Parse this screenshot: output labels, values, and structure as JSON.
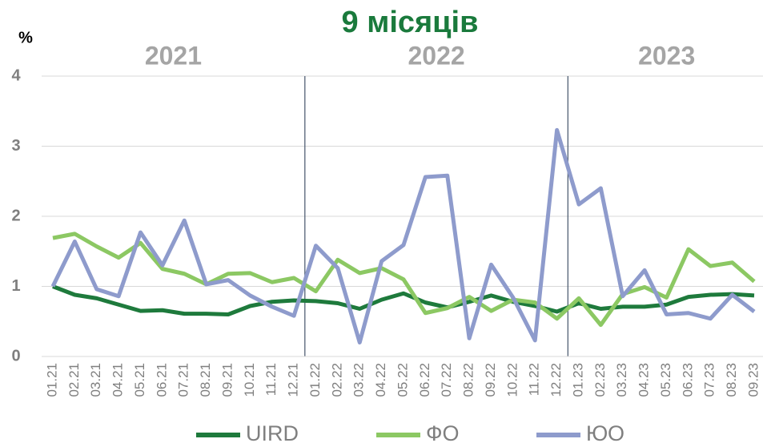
{
  "chart_data": {
    "type": "line",
    "title": "9 місяців",
    "y_label": "%",
    "periods": [
      "2021",
      "2022",
      "2023"
    ],
    "categories": [
      "01.21",
      "02.21",
      "03.21",
      "04.21",
      "05.21",
      "06.21",
      "07.21",
      "08.21",
      "09.21",
      "10.21",
      "11.21",
      "12.21",
      "01.22",
      "02.22",
      "03.22",
      "04.22",
      "05.22",
      "06.22",
      "07.22",
      "08.22",
      "09.22",
      "10.22",
      "11.22",
      "12.22",
      "01.23",
      "02.23",
      "03.23",
      "04.23",
      "05.23",
      "06.23",
      "07.23",
      "08.23",
      "09.23"
    ],
    "series": [
      {
        "name": "UIRD",
        "color": "#1e7a3c",
        "values": [
          1.0,
          0.88,
          0.83,
          0.74,
          0.65,
          0.66,
          0.61,
          0.61,
          0.6,
          0.72,
          0.78,
          0.8,
          0.79,
          0.76,
          0.68,
          0.81,
          0.9,
          0.77,
          0.7,
          0.78,
          0.87,
          0.78,
          0.72,
          0.64,
          0.76,
          0.68,
          0.71,
          0.71,
          0.74,
          0.85,
          0.88,
          0.89,
          0.87
        ]
      },
      {
        "name": "ФО",
        "color": "#8cc863",
        "values": [
          1.69,
          1.75,
          1.57,
          1.41,
          1.62,
          1.25,
          1.18,
          1.03,
          1.18,
          1.19,
          1.06,
          1.12,
          0.93,
          1.38,
          1.19,
          1.26,
          1.1,
          0.62,
          0.69,
          0.85,
          0.65,
          0.81,
          0.77,
          0.54,
          0.83,
          0.45,
          0.89,
          0.99,
          0.84,
          1.53,
          1.29,
          1.34,
          1.07
        ]
      },
      {
        "name": "ЮО",
        "color": "#8e9bcc",
        "values": [
          1.0,
          1.64,
          0.96,
          0.86,
          1.77,
          1.3,
          1.94,
          1.03,
          1.09,
          0.87,
          0.71,
          0.58,
          1.58,
          1.26,
          0.2,
          1.36,
          1.59,
          2.56,
          2.58,
          0.26,
          1.31,
          0.84,
          0.23,
          3.23,
          2.17,
          2.4,
          0.86,
          1.23,
          0.6,
          0.62,
          0.54,
          0.88,
          0.64
        ]
      }
    ],
    "ylim": [
      0,
      4
    ],
    "yticks": [
      0,
      1,
      2,
      3,
      4
    ],
    "grid": true,
    "legend": "bottom"
  }
}
